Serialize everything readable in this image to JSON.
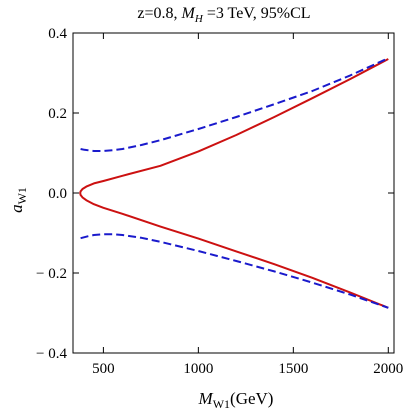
{
  "chart_data": {
    "type": "line",
    "title_parts": {
      "prefix": "z=0.8, ",
      "mass_symbol": "M",
      "mass_subscript": "H",
      "suffix": " =3 TeV, 95%CL"
    },
    "xlabel_parts": {
      "symbol": "M",
      "subscript": "W1",
      "unit": "(GeV)"
    },
    "ylabel_parts": {
      "symbol": "a",
      "subscript": "W1"
    },
    "xlim": [
      340,
      2030
    ],
    "ylim": [
      -0.4,
      0.4
    ],
    "x_ticks": [
      {
        "value": 500,
        "label": "500"
      },
      {
        "value": 1000,
        "label": "1000"
      },
      {
        "value": 1500,
        "label": "1500"
      },
      {
        "value": 2000,
        "label": "2000"
      }
    ],
    "y_ticks": [
      {
        "value": 0.4,
        "label": "0.4"
      },
      {
        "value": 0.2,
        "label": "0.2"
      },
      {
        "value": 0.0,
        "label": "0.0"
      },
      {
        "value": -0.2,
        "label": "− 0.2"
      },
      {
        "value": -0.4,
        "label": "− 0.4"
      }
    ],
    "grid": false,
    "series": [
      {
        "style": "solid",
        "color": "#cc1111",
        "points": [
          [
            2000,
            0.335
          ],
          [
            1800,
            0.285
          ],
          [
            1600,
            0.237
          ],
          [
            1400,
            0.19
          ],
          [
            1200,
            0.145
          ],
          [
            1000,
            0.104
          ],
          [
            800,
            0.068
          ],
          [
            600,
            0.043
          ],
          [
            500,
            0.03
          ],
          [
            450,
            0.024
          ],
          [
            410,
            0.016
          ],
          [
            390,
            0.01
          ],
          [
            380,
            0.004
          ],
          [
            378,
            0.0
          ],
          [
            380,
            -0.005
          ],
          [
            390,
            -0.011
          ],
          [
            410,
            -0.018
          ],
          [
            450,
            -0.028
          ],
          [
            500,
            -0.037
          ],
          [
            600,
            -0.052
          ],
          [
            800,
            -0.084
          ],
          [
            1000,
            -0.114
          ],
          [
            1200,
            -0.146
          ],
          [
            1400,
            -0.178
          ],
          [
            1600,
            -0.212
          ],
          [
            1800,
            -0.249
          ],
          [
            2000,
            -0.287
          ]
        ]
      },
      {
        "style": "dashed",
        "color": "#1a1acc",
        "points": [
          [
            380,
            0.11
          ],
          [
            400,
            0.108
          ],
          [
            450,
            0.105
          ],
          [
            500,
            0.105
          ],
          [
            550,
            0.107
          ],
          [
            600,
            0.11
          ],
          [
            700,
            0.12
          ],
          [
            800,
            0.132
          ],
          [
            1000,
            0.16
          ],
          [
            1200,
            0.19
          ],
          [
            1400,
            0.222
          ],
          [
            1600,
            0.255
          ],
          [
            1800,
            0.294
          ],
          [
            2000,
            0.337
          ]
        ]
      },
      {
        "style": "dashed",
        "color": "#1a1acc",
        "points": [
          [
            380,
            -0.113
          ],
          [
            420,
            -0.108
          ],
          [
            450,
            -0.105
          ],
          [
            500,
            -0.103
          ],
          [
            550,
            -0.103
          ],
          [
            600,
            -0.105
          ],
          [
            700,
            -0.112
          ],
          [
            800,
            -0.122
          ],
          [
            1000,
            -0.145
          ],
          [
            1200,
            -0.17
          ],
          [
            1400,
            -0.196
          ],
          [
            1600,
            -0.224
          ],
          [
            1800,
            -0.254
          ],
          [
            2000,
            -0.287
          ]
        ]
      }
    ]
  }
}
